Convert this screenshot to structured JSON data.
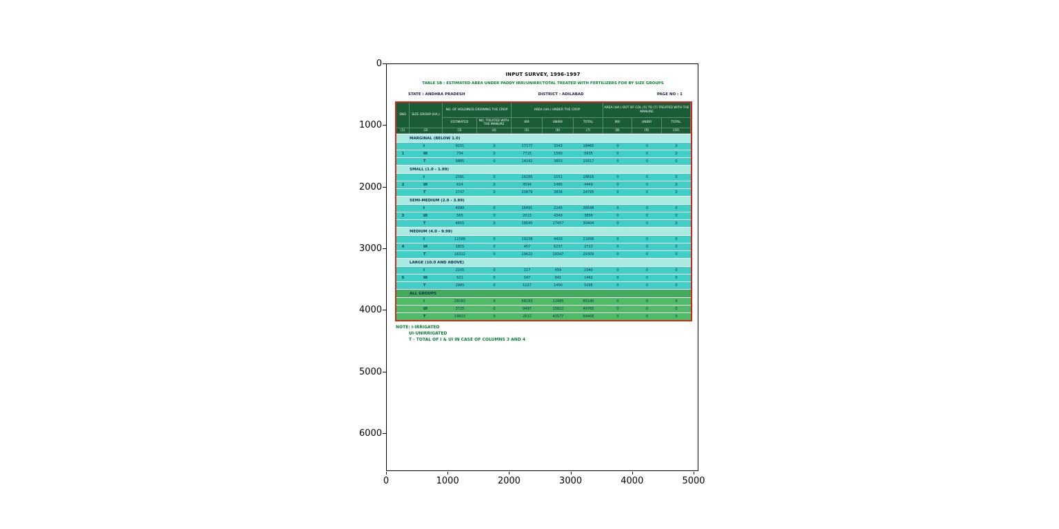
{
  "axes": {
    "x_ticks": [
      "0",
      "1000",
      "2000",
      "3000",
      "4000",
      "5000"
    ],
    "y_ticks": [
      "0",
      "1000",
      "2000",
      "3000",
      "4000",
      "5000",
      "6000"
    ]
  },
  "colors": {
    "header_green": "#1a5c36",
    "body_teal": "#3fcfc6",
    "band_cyan": "#a9ebe1",
    "all_groups_green": "#4fbb66",
    "all_groups_label_green": "#43aa5c",
    "table_border_red": "#cf271c",
    "note_green": "#0a7d35",
    "body_text": "#0e2b50"
  },
  "document": {
    "title": "INPUT SURVEY, 1996-1997",
    "subtitle": "TABLE 5B : ESTIMATED AREA UNDER PADDY IRRI/UNIRRI/TOTAL TREATED WITH FERTILIZERS FOR BY SIZE GROUPS",
    "state": "STATE : ANDHRA PRADESH",
    "district": "DISTRICT : ADILABAD",
    "page": "PAGE NO : 1",
    "notes": [
      "NOTE: I-IRRIGATED",
      "UI-UNIRRIGATED",
      "T - TOTAL OF I & UI IN CASE OF COLUMNS 3 AND 4"
    ]
  },
  "table": {
    "header": {
      "row1": [
        "SNO",
        "SIZE GROUP (HA.)",
        "NO. OF HOLDINGS GROWING THE CROP",
        "AREA (HA.) UNDER THE CROP",
        "AREA (HA.) OUT OF COL.(5) TO (7) TREATED WITH THE MANURE"
      ],
      "row2": [
        "ESTIMATED",
        "NO. TREATED WITH THE MANURE",
        "IRR",
        "UNIRR",
        "TOTAL",
        "IRR",
        "UNIRR",
        "TOTAL"
      ],
      "row3": [
        "(1)",
        "(2)",
        "(3)",
        "(4)",
        "(5)",
        "(6)",
        "(7)",
        "(8)",
        "(9)",
        "(10)"
      ]
    },
    "groups": [
      {
        "label": "MARGINAL (BELOW 1.0)",
        "sno": "1",
        "green": false,
        "rows": [
          {
            "label": "I",
            "values": [
              "9151",
              "0",
              "17177",
              "3343",
              "18465",
              "0",
              "0",
              "0"
            ]
          },
          {
            "label": "UI",
            "values": [
              "734",
              "0",
              "7725",
              "1560",
              "5935",
              "0",
              "0",
              "0"
            ]
          },
          {
            "label": "T",
            "values": [
              "9885",
              "0",
              "14142",
              "3853",
              "19317",
              "0",
              "0",
              "0"
            ]
          }
        ]
      },
      {
        "label": "SMALL (1.0 - 1.99)",
        "sno": "2",
        "green": false,
        "rows": [
          {
            "label": "I",
            "values": [
              "2091",
              "0",
              "16285",
              "1551",
              "18816",
              "0",
              "0",
              "0"
            ]
          },
          {
            "label": "UI",
            "values": [
              "614",
              "0",
              "4594",
              "1485",
              "4449",
              "0",
              "0",
              "0"
            ]
          },
          {
            "label": "T",
            "values": [
              "2747",
              "0",
              "20879",
              "3836",
              "24795",
              "0",
              "0",
              "0"
            ]
          }
        ]
      },
      {
        "label": "SEMI-MEDIUM (2.0 - 3.99)",
        "sno": "3",
        "green": false,
        "rows": [
          {
            "label": "I",
            "values": [
              "4090",
              "0",
              "16491",
              "2245",
              "26548",
              "0",
              "0",
              "0"
            ]
          },
          {
            "label": "UI",
            "values": [
              "565",
              "0",
              "2013",
              "4340",
              "3856",
              "0",
              "0",
              "0"
            ]
          },
          {
            "label": "T",
            "values": [
              "4655",
              "0",
              "18545",
              "17457",
              "30404",
              "0",
              "0",
              "0"
            ]
          }
        ]
      },
      {
        "label": "MEDIUM (4.0 - 9.99)",
        "sno": "4",
        "green": false,
        "rows": [
          {
            "label": "I",
            "values": [
              "11586",
              "0",
              "19238",
              "4420",
              "21896",
              "0",
              "0",
              "0"
            ]
          },
          {
            "label": "UI",
            "values": [
              "1815",
              "0",
              "457",
              "6237",
              "2713",
              "0",
              "0",
              "0"
            ]
          },
          {
            "label": "T",
            "values": [
              "16312",
              "0",
              "19622",
              "10347",
              "29309",
              "0",
              "0",
              "0"
            ]
          }
        ]
      },
      {
        "label": "LARGE (10.0 AND ABOVE)",
        "sno": "5",
        "green": false,
        "rows": [
          {
            "label": "I",
            "values": [
              "2205",
              "0",
              "217",
              "459",
              "2340",
              "0",
              "0",
              "0"
            ]
          },
          {
            "label": "UI",
            "values": [
              "521",
              "0",
              "547",
              "841",
              "1442",
              "0",
              "0",
              "0"
            ]
          },
          {
            "label": "T",
            "values": [
              "2985",
              "0",
              "1227",
              "1450",
              "5295",
              "0",
              "0",
              "0"
            ]
          }
        ]
      },
      {
        "label": "ALL GROUPS",
        "sno": "",
        "green": true,
        "rows": [
          {
            "label": "I",
            "values": [
              "29183",
              "0",
              "68293",
              "12485",
              "85140",
              "0",
              "0",
              "0"
            ]
          },
          {
            "label": "UI",
            "values": [
              "3725",
              "0",
              "9497",
              "15822",
              "49765",
              "0",
              "0",
              "0"
            ]
          },
          {
            "label": "T",
            "values": [
              "19623",
              "0",
              "2612",
              "42577",
              "69408",
              "0",
              "0",
              "0"
            ]
          }
        ]
      }
    ]
  }
}
